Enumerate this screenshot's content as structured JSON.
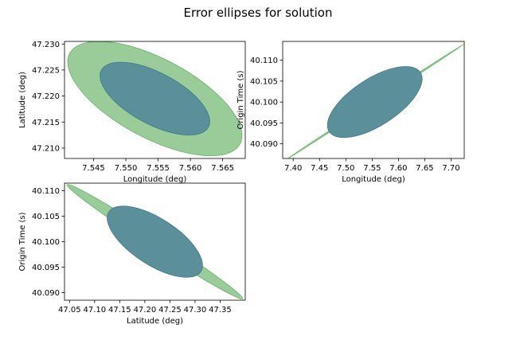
{
  "figure_title": "Error ellipses for solution",
  "colors": {
    "outer_fill": "#99cc99",
    "outer_edge": "#66b266",
    "inner_fill": "#5b8f99",
    "inner_edge": "#3f7a8c"
  },
  "chart_data": [
    {
      "type": "ellipse",
      "id": "lon-lat",
      "xlabel": "Longitude (deg)",
      "ylabel": "Latitude (deg)",
      "xlim": [
        7.5405,
        7.5685
      ],
      "ylim": [
        47.208,
        47.2305
      ],
      "xticks": [
        7.545,
        7.55,
        7.555,
        7.56,
        7.565
      ],
      "xtick_labels": [
        "7.545",
        "7.550",
        "7.555",
        "7.560",
        "7.565"
      ],
      "yticks": [
        47.21,
        47.215,
        47.22,
        47.225,
        47.23
      ],
      "ytick_labels": [
        "47.210",
        "47.215",
        "47.220",
        "47.225",
        "47.230"
      ],
      "center": [
        7.5545,
        47.2195
      ],
      "ellipses": [
        {
          "name": "",
          "level": "outer",
          "extent_x": [
            7.5405,
            7.5675
          ],
          "extent_y": [
            47.2085,
            47.2305
          ]
        },
        {
          "name": "",
          "level": "inner",
          "extent_x": [
            7.546,
            7.563
          ],
          "extent_y": [
            47.2125,
            47.2265
          ]
        }
      ]
    },
    {
      "type": "ellipse",
      "id": "lon-time",
      "xlabel": "Longitude (deg)",
      "ylabel": "Origin Time (s)",
      "xlim": [
        7.38,
        7.725
      ],
      "ylim": [
        40.0865,
        40.1145
      ],
      "xticks": [
        7.4,
        7.45,
        7.5,
        7.55,
        7.6,
        7.65,
        7.7
      ],
      "xtick_labels": [
        "7.40",
        "7.45",
        "7.50",
        "7.55",
        "7.60",
        "7.65",
        "7.70"
      ],
      "yticks": [
        40.09,
        40.095,
        40.1,
        40.105,
        40.11
      ],
      "ytick_labels": [
        "40.090",
        "40.095",
        "40.100",
        "40.105",
        "40.110"
      ],
      "center": [
        7.555,
        40.1
      ],
      "ellipses": [
        {
          "name": "",
          "level": "outer",
          "extent_x": [
            7.385,
            7.72
          ],
          "extent_y": [
            40.088,
            40.1135
          ]
        },
        {
          "name": "",
          "level": "inner",
          "extent_x": [
            7.465,
            7.645
          ],
          "extent_y": [
            40.0915,
            40.1085
          ]
        }
      ]
    },
    {
      "type": "ellipse",
      "id": "lat-time",
      "xlabel": "Latitude (deg)",
      "ylabel": "Origin Time (s)",
      "xlim": [
        47.04,
        47.4
      ],
      "ylim": [
        40.0885,
        40.1115
      ],
      "xticks": [
        47.05,
        47.1,
        47.15,
        47.2,
        47.25,
        47.3,
        47.35
      ],
      "xtick_labels": [
        "47.05",
        "47.10",
        "47.15",
        "47.20",
        "47.25",
        "47.30",
        "47.35"
      ],
      "yticks": [
        40.09,
        40.095,
        40.1,
        40.105,
        40.11
      ],
      "ytick_labels": [
        "40.090",
        "40.095",
        "40.100",
        "40.105",
        "40.110"
      ],
      "center": [
        47.22,
        40.1
      ],
      "ellipses": [
        {
          "name": "",
          "level": "outer",
          "extent_x": [
            47.045,
            47.395
          ],
          "extent_y": [
            40.089,
            40.1115
          ]
        },
        {
          "name": "",
          "level": "inner",
          "extent_x": [
            47.125,
            47.315
          ],
          "extent_y": [
            40.093,
            40.107
          ]
        }
      ]
    }
  ]
}
